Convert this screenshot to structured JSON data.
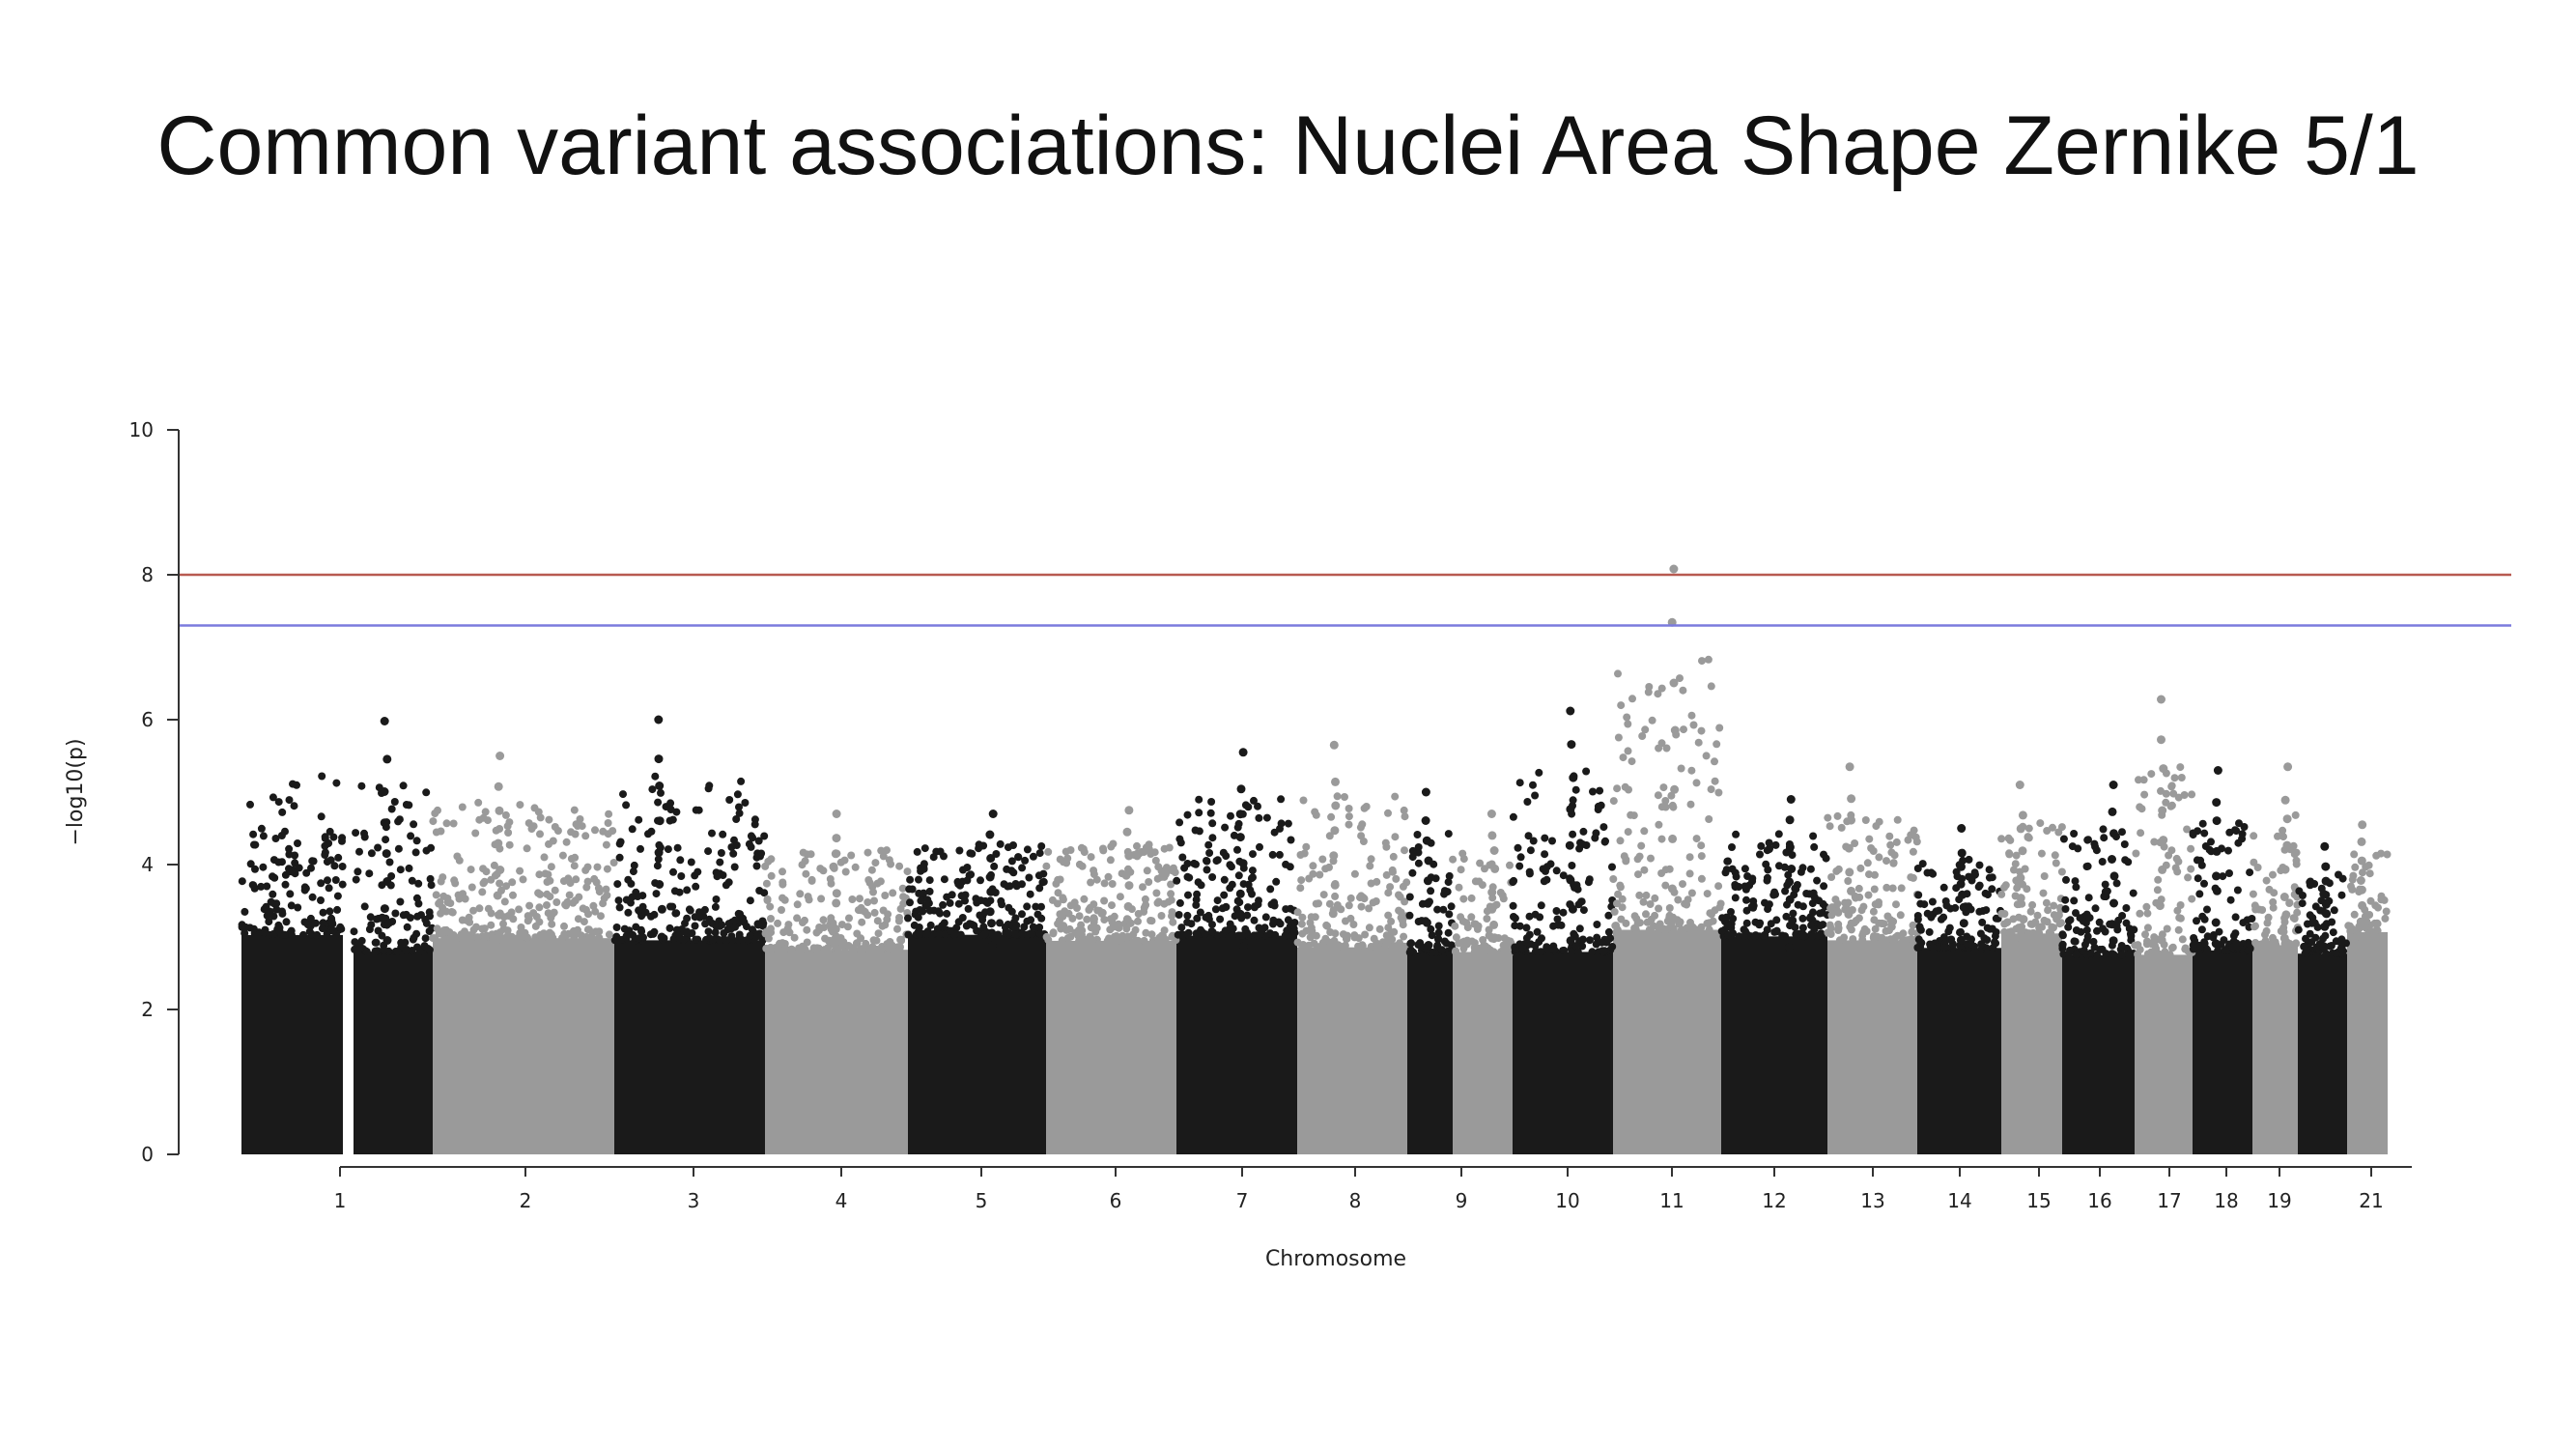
{
  "title": "Common variant associations: Nuclei Area Shape Zernike 5/1",
  "colors": {
    "dark_series": "#1a1a1a",
    "light_series": "#9a9a9a",
    "suggestive_line": "#7b7bdd",
    "significance_line": "#b85a50",
    "axis": "#333333"
  },
  "chart_data": {
    "type": "scatter",
    "subtype": "manhattan",
    "title": "",
    "xlabel": "Chromosome",
    "ylabel": "−log10(p)",
    "ylim": [
      0,
      10
    ],
    "y_ticks": [
      0,
      2,
      4,
      6,
      8,
      10
    ],
    "threshold_lines": [
      {
        "y": 8.0,
        "color": "#b85a50"
      },
      {
        "y": 7.3,
        "color": "#7b7bdd"
      }
    ],
    "chromosomes": [
      {
        "chrom": "1",
        "label": "1",
        "peak": 5.98
      },
      {
        "chrom": "2",
        "label": "2",
        "peak": 5.5
      },
      {
        "chrom": "3",
        "label": "3",
        "peak": 6.0
      },
      {
        "chrom": "4",
        "label": "4",
        "peak": 4.7
      },
      {
        "chrom": "5",
        "label": "5",
        "peak": 4.7
      },
      {
        "chrom": "6",
        "label": "6",
        "peak": 4.75
      },
      {
        "chrom": "7",
        "label": "7",
        "peak": 5.55
      },
      {
        "chrom": "8",
        "label": "8",
        "peak": 5.65
      },
      {
        "chrom": "9",
        "label": "9",
        "peak": 5.0
      },
      {
        "chrom": "10",
        "label": "10",
        "peak": 4.7
      },
      {
        "chrom": "11",
        "label": "11",
        "peak": 6.12
      },
      {
        "chrom": "12",
        "label": "12",
        "peak": 8.08
      },
      {
        "chrom": "13",
        "label": "13",
        "peak": 4.9
      },
      {
        "chrom": "14",
        "label": "14",
        "peak": 5.35
      },
      {
        "chrom": "15",
        "label": "15",
        "peak": 4.5
      },
      {
        "chrom": "16",
        "label": "16",
        "peak": 5.1
      },
      {
        "chrom": "17",
        "label": "17",
        "peak": 5.1
      },
      {
        "chrom": "18",
        "label": "18",
        "peak": 6.28
      },
      {
        "chrom": "19",
        "label": "19",
        "peak": 5.3
      },
      {
        "chrom": "20",
        "label": "",
        "peak": 5.35
      },
      {
        "chrom": "21",
        "label": "21",
        "peak": 4.25
      },
      {
        "chrom": "22",
        "label": "",
        "peak": 4.55
      }
    ]
  }
}
